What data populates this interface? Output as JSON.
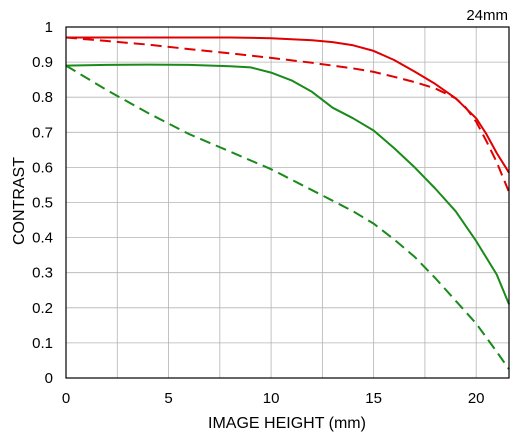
{
  "chart_data": {
    "type": "line",
    "corner_label": "24mm",
    "xlabel": "IMAGE HEIGHT (mm)",
    "ylabel": "CONTRAST",
    "xlim": [
      0,
      21.6
    ],
    "ylim": [
      0,
      1
    ],
    "x_ticks": [
      0,
      5,
      10,
      15,
      20
    ],
    "y_ticks": [
      0,
      0.1,
      0.2,
      0.3,
      0.4,
      0.5,
      0.6,
      0.7,
      0.8,
      0.9,
      1
    ],
    "x_gridlines": [
      0,
      2.5,
      5,
      7.5,
      10,
      12.5,
      15,
      17.5,
      20
    ],
    "grid": true,
    "series": [
      {
        "color": "#e00000",
        "dash": "solid",
        "x": [
          0,
          2,
          4,
          6,
          8,
          10,
          12,
          13,
          14,
          15,
          16,
          17,
          18,
          19,
          20,
          20.5,
          21,
          21.6
        ],
        "y": [
          0.97,
          0.97,
          0.97,
          0.97,
          0.97,
          0.968,
          0.962,
          0.957,
          0.948,
          0.932,
          0.906,
          0.873,
          0.838,
          0.797,
          0.74,
          0.695,
          0.641,
          0.585
        ]
      },
      {
        "color": "#e00000",
        "dash": "dashed",
        "x": [
          0,
          2,
          4,
          6,
          8,
          10,
          12,
          13,
          14,
          15,
          16,
          17,
          18,
          19,
          19.5,
          20,
          20.5,
          21,
          21.6
        ],
        "y": [
          0.97,
          0.96,
          0.95,
          0.937,
          0.925,
          0.912,
          0.898,
          0.89,
          0.882,
          0.872,
          0.858,
          0.843,
          0.825,
          0.797,
          0.77,
          0.73,
          0.675,
          0.615,
          0.53
        ]
      },
      {
        "color": "#1a8a1a",
        "dash": "solid",
        "x": [
          0,
          2,
          4,
          6,
          8,
          9,
          10,
          11,
          12,
          13,
          14,
          15,
          16,
          17,
          18,
          19,
          20,
          21,
          21.6
        ],
        "y": [
          0.89,
          0.892,
          0.893,
          0.892,
          0.888,
          0.885,
          0.87,
          0.848,
          0.815,
          0.77,
          0.74,
          0.705,
          0.655,
          0.6,
          0.54,
          0.475,
          0.39,
          0.295,
          0.21
        ]
      },
      {
        "color": "#1a8a1a",
        "dash": "dashed",
        "x": [
          0,
          2,
          4,
          6,
          8,
          10,
          11,
          12,
          13,
          14,
          15,
          16,
          17,
          18,
          19,
          20,
          21,
          21.6
        ],
        "y": [
          0.89,
          0.82,
          0.755,
          0.695,
          0.645,
          0.595,
          0.565,
          0.535,
          0.505,
          0.475,
          0.44,
          0.395,
          0.345,
          0.285,
          0.22,
          0.155,
          0.075,
          0.025
        ]
      }
    ]
  }
}
